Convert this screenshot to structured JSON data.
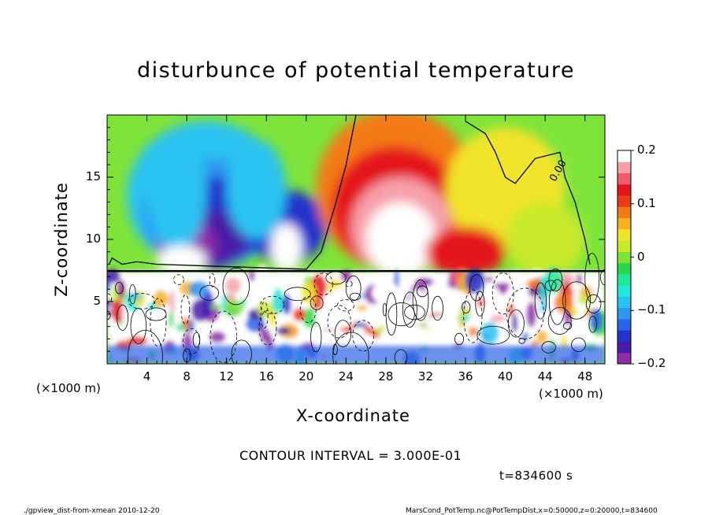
{
  "chart_data": {
    "type": "heatmap",
    "title": "disturbunce of potential temperature",
    "xlabel": "X-coordinate",
    "ylabel": "Z-coordinate",
    "x_unit_label": "(×1000 m)",
    "x_unit_label_right": "(×1000 m)",
    "x_ticks": [
      4,
      8,
      12,
      16,
      20,
      24,
      28,
      32,
      36,
      40,
      44,
      48
    ],
    "y_ticks": [
      5,
      10,
      15
    ],
    "xlim": [
      0,
      50
    ],
    "ylim": [
      0,
      20
    ],
    "colorbar": {
      "range": [
        -0.2,
        0.2
      ],
      "tick_labels": [
        "0.2",
        "0.1",
        "0",
        "−0.1",
        "−0.2"
      ],
      "tick_values": [
        0.2,
        0.1,
        0,
        -0.1,
        -0.2
      ],
      "colors": [
        "#8f2ca8",
        "#4a1aa8",
        "#2233cc",
        "#2a63e6",
        "#2e95f0",
        "#29c3f2",
        "#22e6da",
        "#1ee89a",
        "#28d84a",
        "#7ee43a",
        "#c8ea2c",
        "#f2e42a",
        "#f5b21e",
        "#f47a16",
        "#ef3a18",
        "#e4141e",
        "#f25a6e",
        "#f7a0aa",
        "#ffffff"
      ]
    },
    "contour_label": "0.00",
    "contour_interval_text": "CONTOUR INTERVAL = 3.000E-01",
    "annotation": "t=834600 s"
  },
  "footer": {
    "left": "./gpview_dist-from-xmean   2010-12-20",
    "right": "MarsCond_PotTemp.nc@PotTempDist,x=0:50000,z=0:20000,t=834600"
  }
}
